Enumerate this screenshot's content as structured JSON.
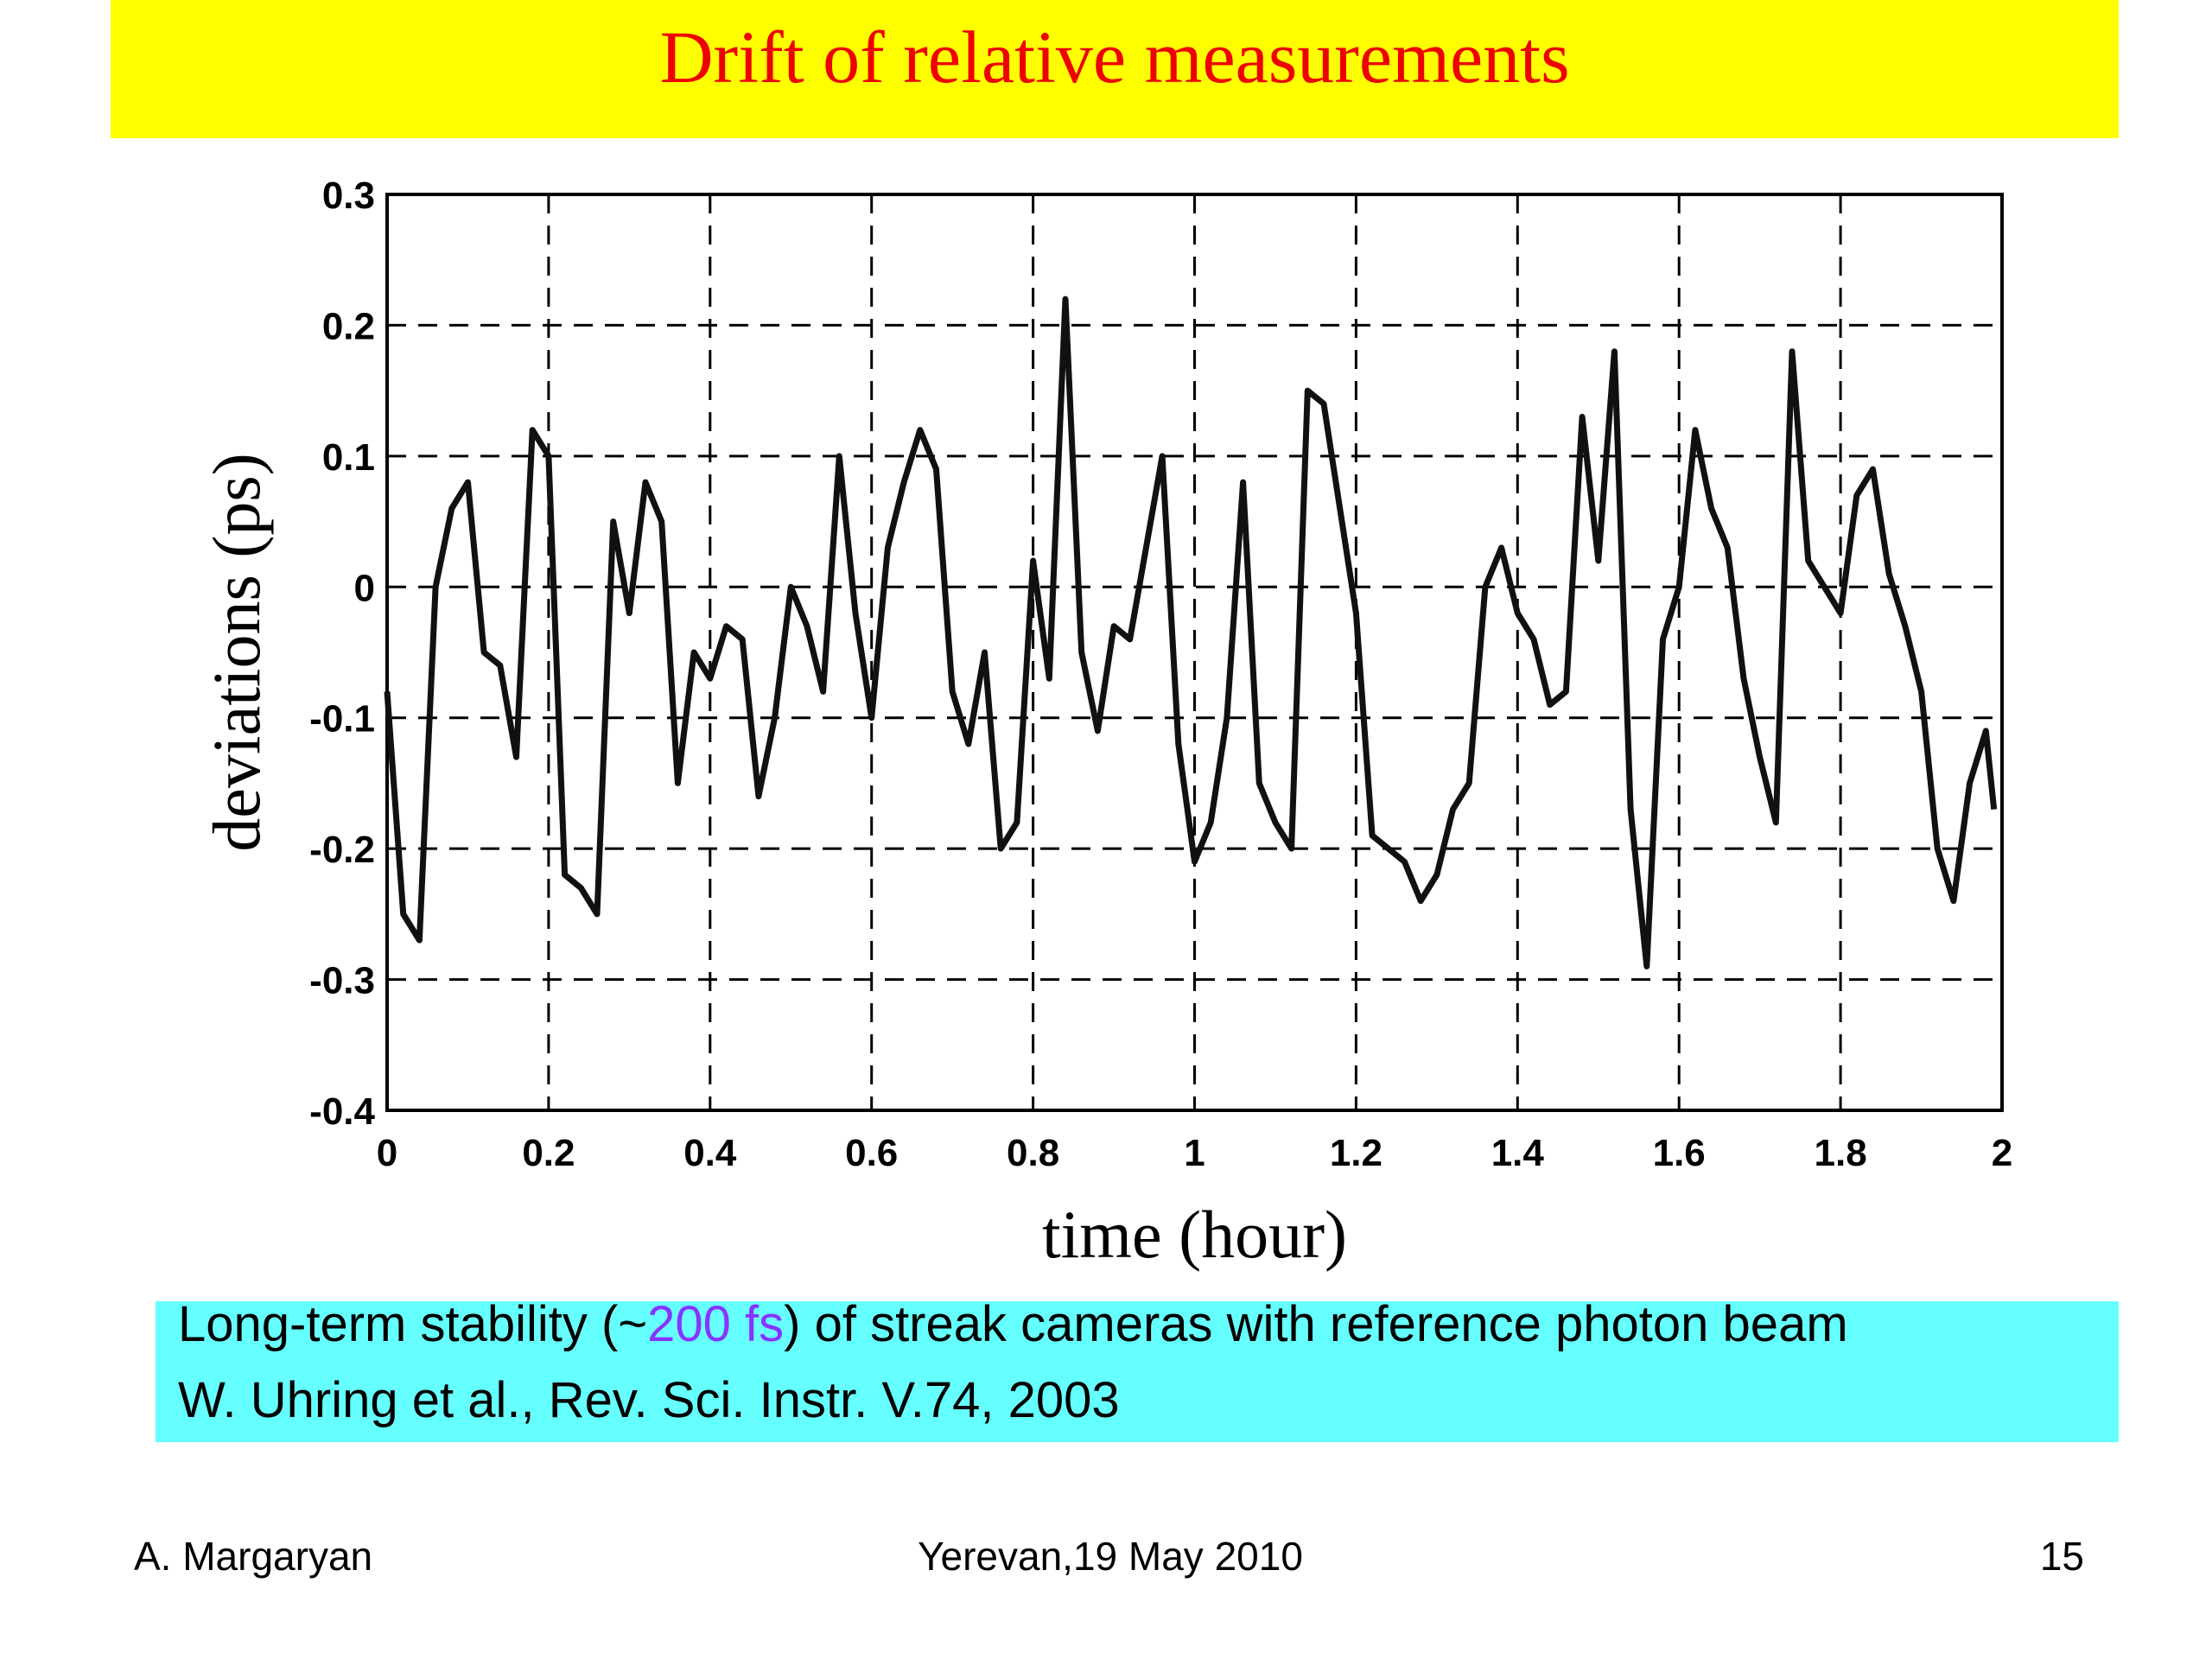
{
  "slide": {
    "title": "Drift of relative measurements",
    "caption": {
      "line1": [
        "Long-term stability (~",
        "200 fs",
        ") of streak cameras with reference photon beam"
      ],
      "line2": "W. Uhring et al., Rev. Sci. Instr. V.74, 2003"
    },
    "footer": {
      "author": "A. Margaryan",
      "event": "Yerevan,19  May 2010",
      "page": "15"
    }
  },
  "chart_data": {
    "type": "line",
    "xlabel": "time (hour)",
    "ylabel": "deviations (ps)",
    "xlim": [
      0,
      2
    ],
    "ylim": [
      -0.4,
      0.3
    ],
    "xticks": [
      0,
      0.2,
      0.4,
      0.6,
      0.8,
      1,
      1.2,
      1.4,
      1.6,
      1.8,
      2
    ],
    "yticks": [
      -0.4,
      -0.3,
      -0.2,
      -0.1,
      0,
      0.1,
      0.2,
      0.3
    ],
    "grid": true,
    "x": [
      0,
      0.02,
      0.04,
      0.06,
      0.08,
      0.1,
      0.12,
      0.14,
      0.16,
      0.18,
      0.2,
      0.22,
      0.24,
      0.26,
      0.28,
      0.3,
      0.32,
      0.34,
      0.36,
      0.38,
      0.4,
      0.42,
      0.44,
      0.46,
      0.48,
      0.5,
      0.52,
      0.54,
      0.56,
      0.58,
      0.6,
      0.62,
      0.64,
      0.66,
      0.68,
      0.7,
      0.72,
      0.74,
      0.76,
      0.78,
      0.8,
      0.82,
      0.84,
      0.86,
      0.88,
      0.9,
      0.92,
      0.94,
      0.96,
      0.98,
      1,
      1.02,
      1.04,
      1.06,
      1.08,
      1.1,
      1.12,
      1.14,
      1.16,
      1.18,
      1.2,
      1.22,
      1.24,
      1.26,
      1.28,
      1.3,
      1.32,
      1.34,
      1.36,
      1.38,
      1.4,
      1.42,
      1.44,
      1.46,
      1.48,
      1.5,
      1.52,
      1.54,
      1.56,
      1.58,
      1.6,
      1.62,
      1.64,
      1.66,
      1.68,
      1.7,
      1.72,
      1.74,
      1.76,
      1.78,
      1.8,
      1.82,
      1.84,
      1.86,
      1.88,
      1.9,
      1.92,
      1.94,
      1.96,
      1.98,
      1.99
    ],
    "series": [
      {
        "color": "#111111",
        "values": [
          -0.08,
          -0.25,
          -0.27,
          0,
          0.06,
          0.08,
          -0.05,
          -0.06,
          -0.13,
          0.12,
          0.1,
          -0.22,
          -0.23,
          -0.25,
          0.05,
          -0.02,
          0.08,
          0.05,
          -0.15,
          -0.05,
          -0.07,
          -0.03,
          -0.04,
          -0.16,
          -0.1,
          0,
          -0.03,
          -0.08,
          0.1,
          -0.02,
          -0.1,
          0.03,
          0.08,
          0.12,
          0.09,
          -0.08,
          -0.12,
          -0.05,
          -0.2,
          -0.18,
          0.02,
          -0.07,
          0.22,
          -0.05,
          -0.11,
          -0.03,
          -0.04,
          0.03,
          0.1,
          -0.12,
          -0.21,
          -0.18,
          -0.1,
          0.08,
          -0.15,
          -0.18,
          -0.2,
          0.15,
          0.14,
          0.06,
          -0.02,
          -0.19,
          -0.2,
          -0.21,
          -0.24,
          -0.22,
          -0.17,
          -0.15,
          0,
          0.03,
          -0.02,
          -0.04,
          -0.09,
          -0.08,
          0.13,
          0.02,
          0.18,
          -0.17,
          -0.29,
          -0.04,
          0,
          0.12,
          0.06,
          0.03,
          -0.07,
          -0.13,
          -0.18,
          0.18,
          0.02,
          0,
          -0.02,
          0.07,
          0.09,
          0.01,
          -0.03,
          -0.08,
          -0.2,
          -0.24,
          -0.15,
          -0.11,
          -0.17
        ]
      }
    ]
  }
}
